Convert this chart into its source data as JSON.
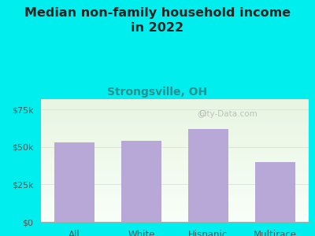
{
  "title": "Median non-family household income\nin 2022",
  "subtitle": "Strongsville, OH",
  "categories": [
    "All",
    "White",
    "Hispanic",
    "Multirace"
  ],
  "values": [
    53000,
    54000,
    62000,
    40000
  ],
  "bar_color": "#b8a8d8",
  "background_color": "#00EEEE",
  "title_color": "#222222",
  "subtitle_color": "#2a9090",
  "tick_label_color": "#555555",
  "xticklabel_color": "#555555",
  "yticks": [
    0,
    25000,
    50000,
    75000
  ],
  "ytick_labels": [
    "$0",
    "$25k",
    "$50k",
    "$75k"
  ],
  "ylim": [
    0,
    82000
  ],
  "watermark": "City-Data.com",
  "grid_color": "#dddddd",
  "title_fontsize": 11.5,
  "subtitle_fontsize": 10,
  "plot_bg_colors": [
    "#e8f5e2",
    "#f8fff8"
  ],
  "bar_gap_color": "#00EEEE"
}
